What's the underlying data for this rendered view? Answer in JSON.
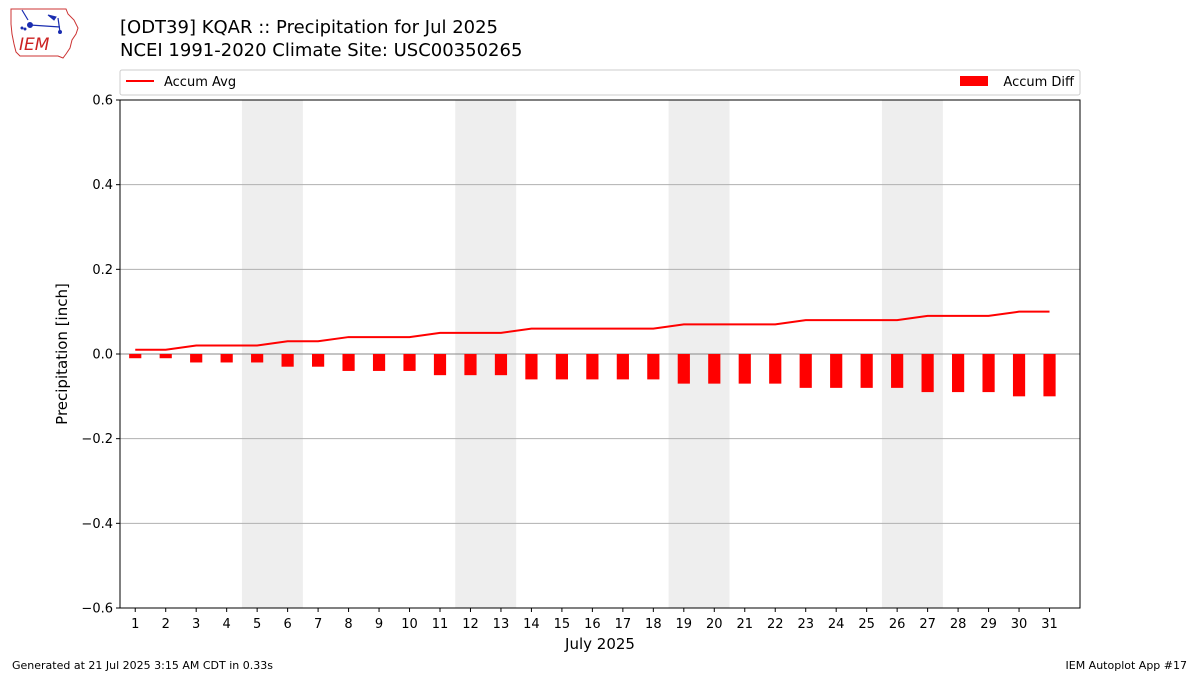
{
  "header": {
    "logo_text": "IEM",
    "title_line1": "[ODT39] KQAR :: Precipitation for Jul 2025",
    "title_line2": "NCEI 1991-2020 Climate Site: USC00350265"
  },
  "footer": {
    "generated": "Generated at 21 Jul 2025 3:15 AM CDT in 0.33s",
    "app": "IEM Autoplot App #17"
  },
  "colors": {
    "series": "#ff0000",
    "weekend_band": "#eeeeee",
    "grid": "#b0b0b0"
  },
  "chart_data": {
    "type": "bar",
    "xlabel": "July 2025",
    "ylabel": "Precipitation [inch]",
    "ylim": [
      -0.6,
      0.6
    ],
    "yticks": [
      -0.6,
      -0.4,
      -0.2,
      0.0,
      0.2,
      0.4,
      0.6
    ],
    "ytick_labels": [
      "−0.6",
      "−0.4",
      "−0.2",
      "0.0",
      "0.2",
      "0.4",
      "0.6"
    ],
    "grid": "horizontal",
    "legend_placement": "top, outside plot",
    "categories": [
      "1",
      "2",
      "3",
      "4",
      "5",
      "6",
      "7",
      "8",
      "9",
      "10",
      "11",
      "12",
      "13",
      "14",
      "15",
      "16",
      "17",
      "18",
      "19",
      "20",
      "21",
      "22",
      "23",
      "24",
      "25",
      "26",
      "27",
      "28",
      "29",
      "30",
      "31"
    ],
    "shaded_days": [
      [
        5,
        6
      ],
      [
        12,
        13
      ],
      [
        19,
        20
      ],
      [
        26,
        27
      ]
    ],
    "series": [
      {
        "name": "Accum Avg",
        "kind": "line",
        "values": [
          0.01,
          0.01,
          0.02,
          0.02,
          0.02,
          0.03,
          0.03,
          0.04,
          0.04,
          0.04,
          0.05,
          0.05,
          0.05,
          0.06,
          0.06,
          0.06,
          0.06,
          0.06,
          0.07,
          0.07,
          0.07,
          0.07,
          0.08,
          0.08,
          0.08,
          0.08,
          0.09,
          0.09,
          0.09,
          0.1,
          0.1
        ]
      },
      {
        "name": "Accum Diff",
        "kind": "bar",
        "values": [
          -0.01,
          -0.01,
          -0.02,
          -0.02,
          -0.02,
          -0.03,
          -0.03,
          -0.04,
          -0.04,
          -0.04,
          -0.05,
          -0.05,
          -0.05,
          -0.06,
          -0.06,
          -0.06,
          -0.06,
          -0.06,
          -0.07,
          -0.07,
          -0.07,
          -0.07,
          -0.08,
          -0.08,
          -0.08,
          -0.08,
          -0.09,
          -0.09,
          -0.09,
          -0.1,
          -0.1
        ]
      }
    ]
  }
}
